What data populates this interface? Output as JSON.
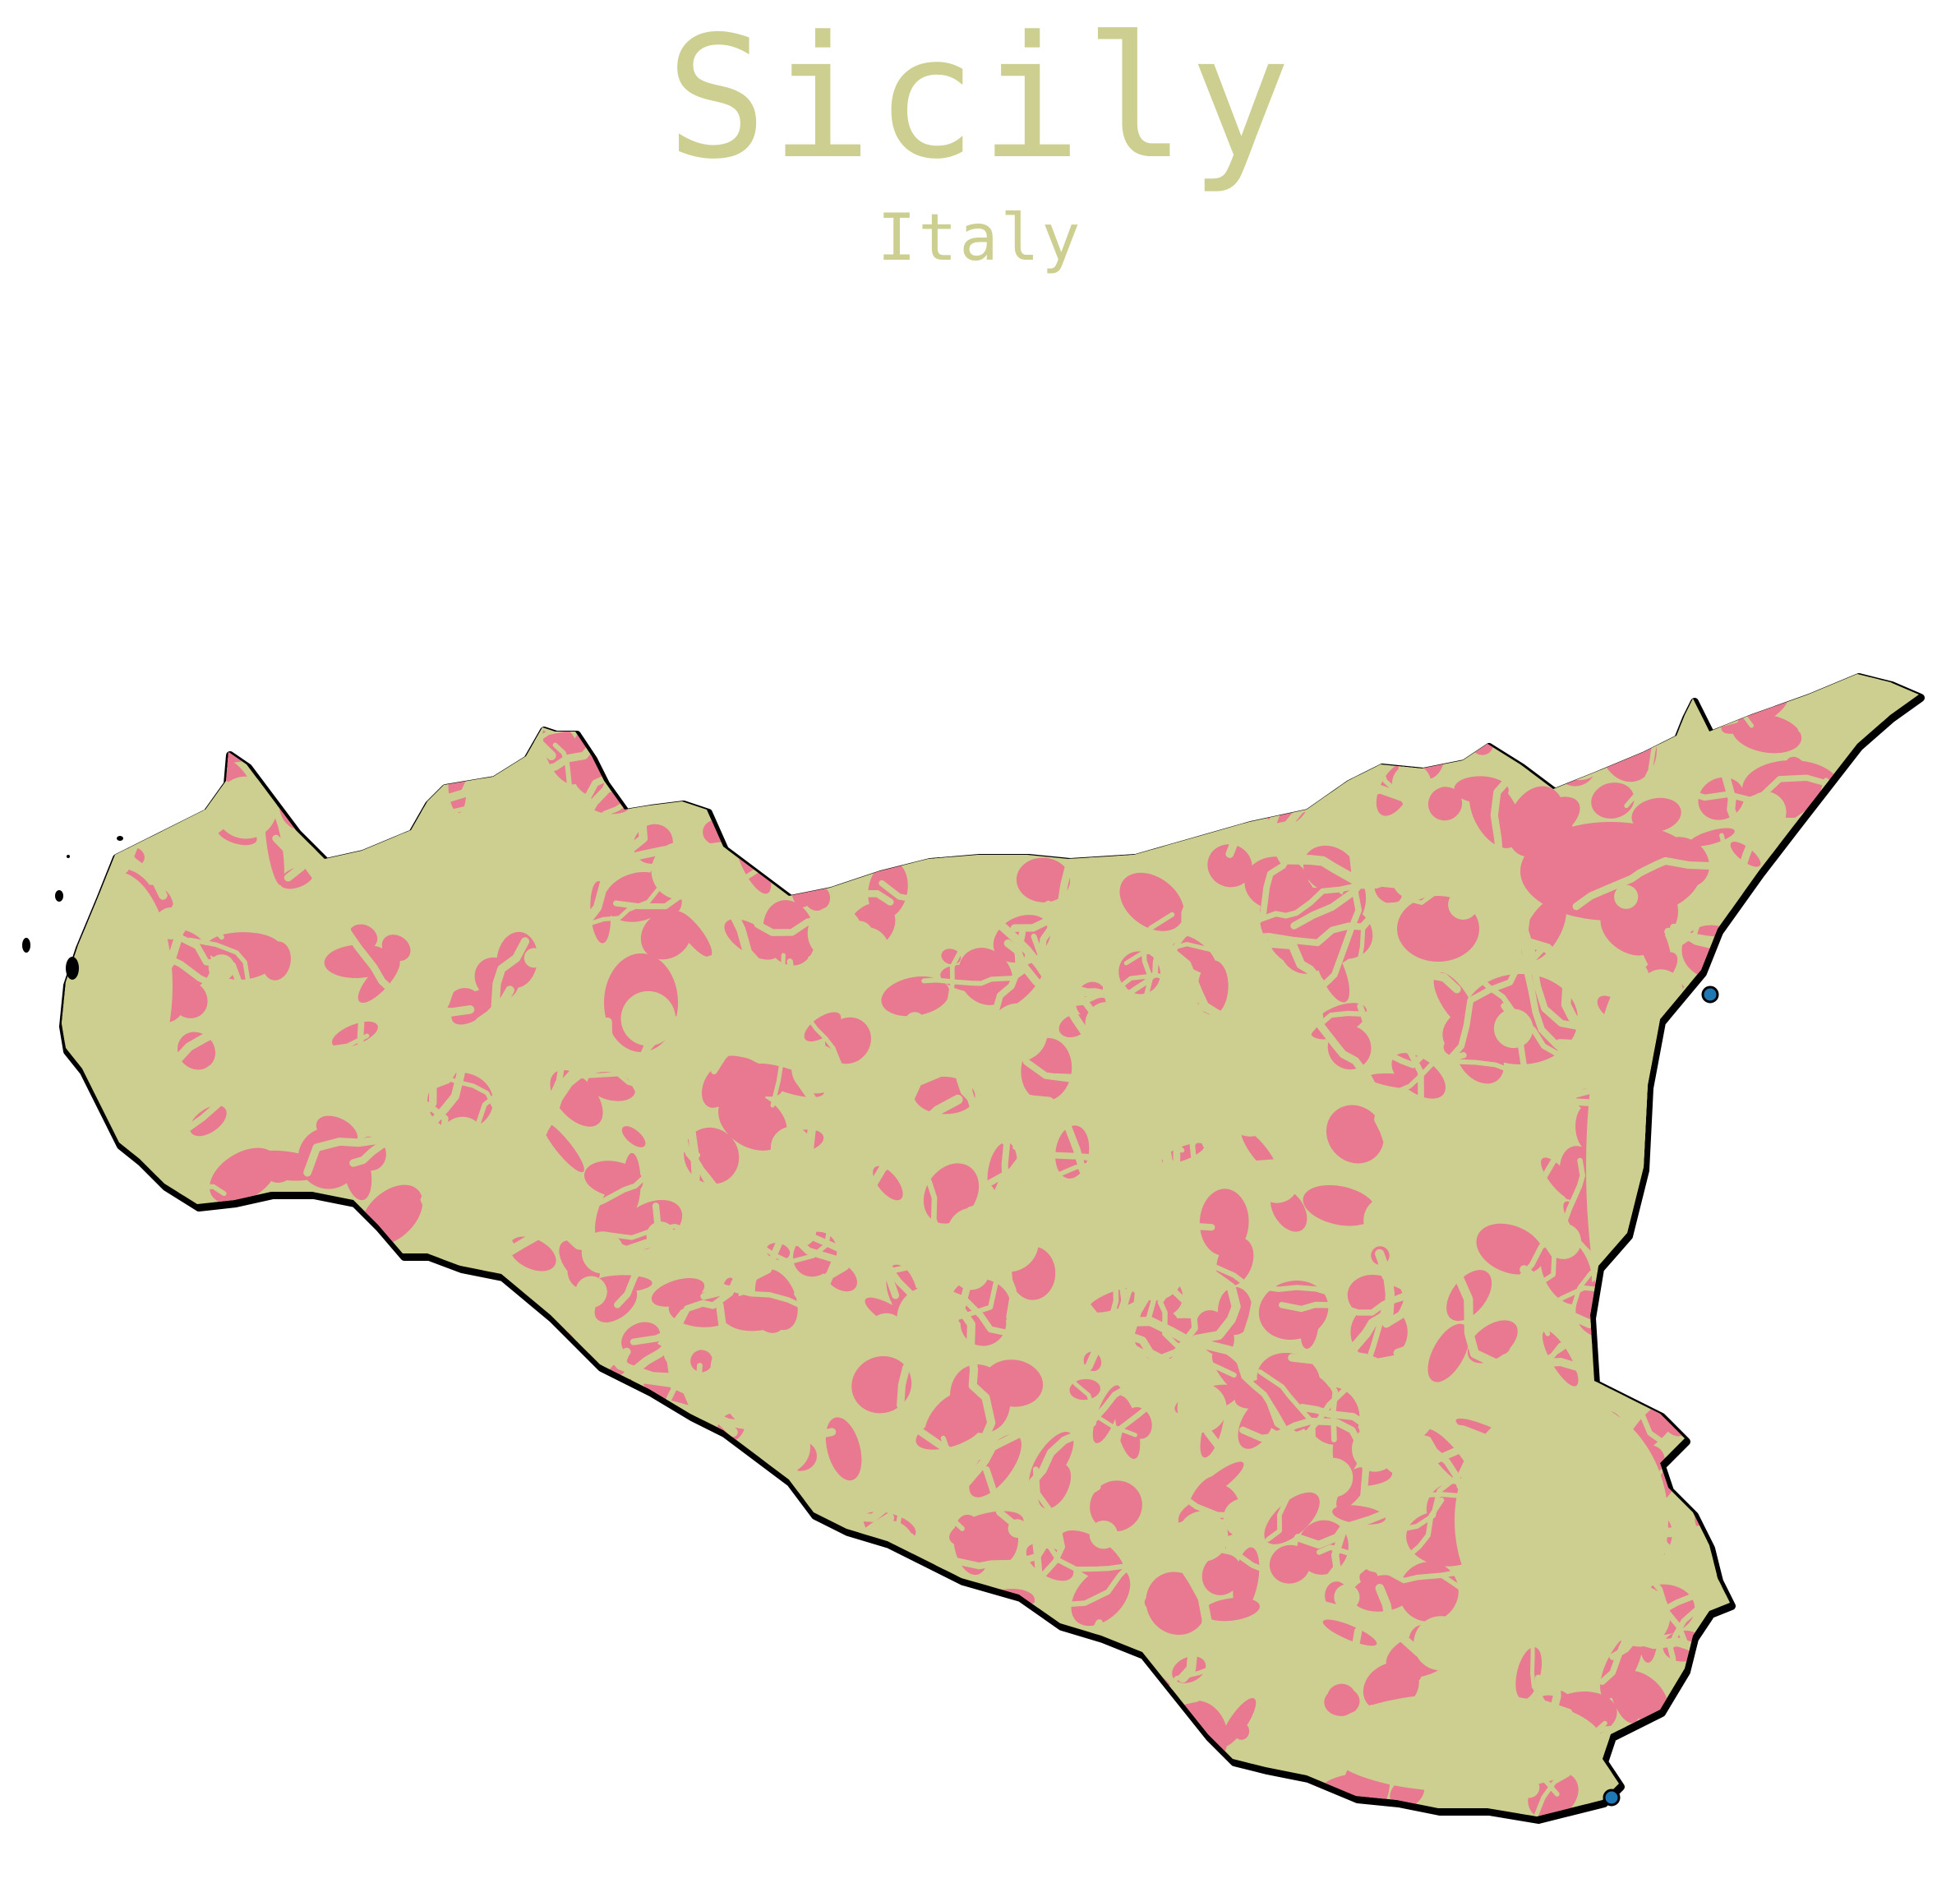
{
  "map": {
    "title": "Sicily",
    "subtitle": "Italy",
    "colors": {
      "title": "#cccf8f",
      "subtitle": "#cccf8f",
      "land": "#cccf8f",
      "built_area": "#e97891",
      "coastline": "#000000",
      "water_point": "#1f77b4",
      "background": "#ffffff"
    }
  }
}
